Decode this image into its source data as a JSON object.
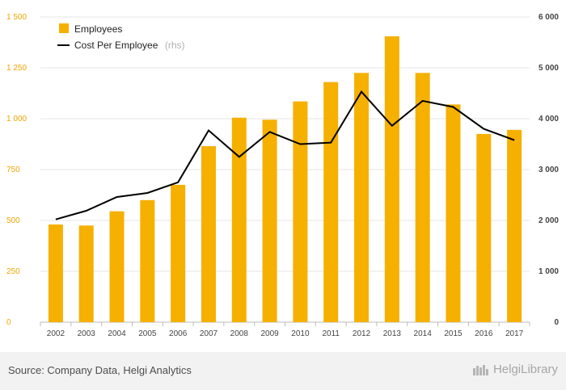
{
  "chart_data": {
    "type": "bar",
    "categories": [
      "2002",
      "2003",
      "2004",
      "2005",
      "2006",
      "2007",
      "2008",
      "2009",
      "2010",
      "2011",
      "2012",
      "2013",
      "2014",
      "2015",
      "2016",
      "2017"
    ],
    "series": [
      {
        "name": "Employees",
        "kind": "bar",
        "axis": "left",
        "color": "#f5b000",
        "values": [
          480,
          475,
          545,
          600,
          675,
          865,
          1005,
          995,
          1085,
          1180,
          1225,
          1405,
          1225,
          1070,
          925,
          945
        ]
      },
      {
        "name": "Cost Per Employee",
        "kind": "line",
        "axis": "right",
        "color": "#000000",
        "values": [
          2020,
          2190,
          2460,
          2540,
          2750,
          3770,
          3250,
          3740,
          3500,
          3530,
          4530,
          3860,
          4350,
          4230,
          3800,
          3580
        ]
      }
    ],
    "legend_suffix": "(rhs)",
    "ylim_left": [
      0,
      1500
    ],
    "yticks_left": [
      "0",
      "250",
      "500",
      "750",
      "1 000",
      "1 250",
      "1 500"
    ],
    "ylim_right": [
      0,
      6000
    ],
    "yticks_right": [
      "0",
      "1 000",
      "2 000",
      "3 000",
      "4 000",
      "5 000",
      "6 000"
    ],
    "grid": "horizontal",
    "legend_position": "top-left"
  },
  "footer": {
    "source": "Source: Company Data, Helgi Analytics",
    "brand": "HelgiLibrary"
  }
}
